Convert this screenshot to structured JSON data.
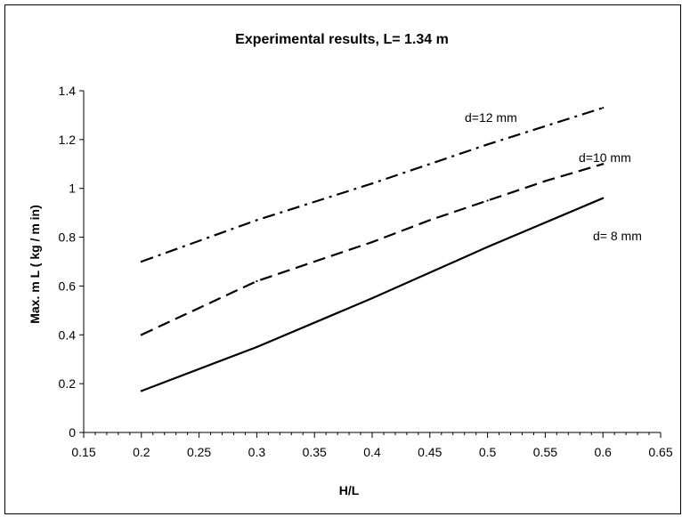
{
  "chart_data": {
    "type": "line",
    "title": "Experimental results, L= 1.34 m",
    "xlabel": "H/L",
    "ylabel": "Max. m L ( kg / m in)",
    "xlim": [
      0.15,
      0.65
    ],
    "ylim": [
      0,
      1.4
    ],
    "xticks": [
      0.15,
      0.2,
      0.25,
      0.3,
      0.35,
      0.4,
      0.45,
      0.5,
      0.55,
      0.6,
      0.65
    ],
    "yticks": [
      0,
      0.2,
      0.4,
      0.6,
      0.8,
      1,
      1.2,
      1.4
    ],
    "xtick_labels": [
      "0.15",
      "0.2",
      "0.25",
      "0.3",
      "0.35",
      "0.4",
      "0.45",
      "0.5",
      "0.55",
      "0.6",
      "0.65"
    ],
    "ytick_labels": [
      "0",
      "0.2",
      "0.4",
      "0.6",
      "0.8",
      "1",
      "1.2",
      "1.4"
    ],
    "grid": false,
    "legend": "none",
    "series": [
      {
        "name": "d=12 mm",
        "line_style": "dash-dot",
        "color": "#000000",
        "x": [
          0.2,
          0.3,
          0.4,
          0.5,
          0.6
        ],
        "y": [
          0.7,
          0.87,
          1.02,
          1.18,
          1.33
        ]
      },
      {
        "name": "d=10 mm",
        "line_style": "dashed",
        "color": "#000000",
        "x": [
          0.2,
          0.25,
          0.3,
          0.35,
          0.4,
          0.45,
          0.5,
          0.55,
          0.6
        ],
        "y": [
          0.4,
          0.51,
          0.62,
          0.7,
          0.78,
          0.87,
          0.95,
          1.03,
          1.1
        ]
      },
      {
        "name": "d= 8 mm",
        "line_style": "solid",
        "color": "#000000",
        "x": [
          0.2,
          0.3,
          0.4,
          0.5,
          0.6
        ],
        "y": [
          0.17,
          0.35,
          0.55,
          0.76,
          0.96
        ]
      }
    ]
  }
}
